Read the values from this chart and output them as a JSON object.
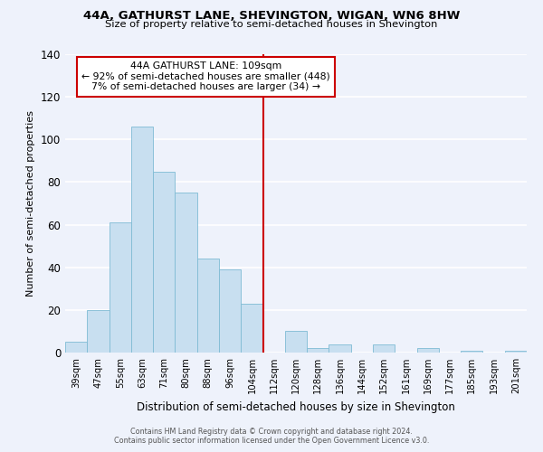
{
  "title": "44A, GATHURST LANE, SHEVINGTON, WIGAN, WN6 8HW",
  "subtitle": "Size of property relative to semi-detached houses in Shevington",
  "xlabel": "Distribution of semi-detached houses by size in Shevington",
  "ylabel": "Number of semi-detached properties",
  "bar_labels": [
    "39sqm",
    "47sqm",
    "55sqm",
    "63sqm",
    "71sqm",
    "80sqm",
    "88sqm",
    "96sqm",
    "104sqm",
    "112sqm",
    "120sqm",
    "128sqm",
    "136sqm",
    "144sqm",
    "152sqm",
    "161sqm",
    "169sqm",
    "177sqm",
    "185sqm",
    "193sqm",
    "201sqm"
  ],
  "bar_values": [
    5,
    20,
    61,
    106,
    85,
    75,
    44,
    39,
    23,
    0,
    10,
    2,
    4,
    0,
    4,
    0,
    2,
    0,
    1,
    0,
    1
  ],
  "bar_color": "#c8dff0",
  "bar_edge_color": "#7fbbd4",
  "ylim": [
    0,
    140
  ],
  "yticks": [
    0,
    20,
    40,
    60,
    80,
    100,
    120,
    140
  ],
  "property_line_index": 8,
  "property_line_label": "44A GATHURST LANE: 109sqm",
  "annotation_line1": "← 92% of semi-detached houses are smaller (448)",
  "annotation_line2": "7% of semi-detached houses are larger (34) →",
  "footer_line1": "Contains HM Land Registry data © Crown copyright and database right 2024.",
  "footer_line2": "Contains public sector information licensed under the Open Government Licence v3.0.",
  "background_color": "#eef2fb",
  "grid_color": "#ffffff",
  "property_line_color": "#cc0000"
}
